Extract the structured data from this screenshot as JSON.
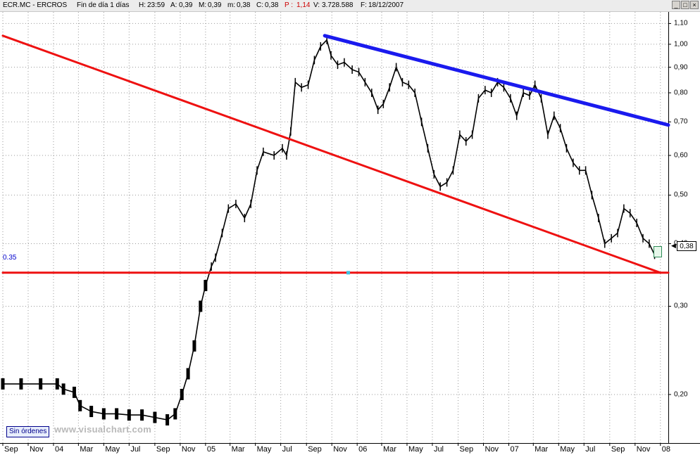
{
  "header": {
    "symbol": "ECR.MC - ERCROS",
    "period": "Fin de día 1 días",
    "h_label": "H:",
    "h_value": "23:59",
    "a_label": "A:",
    "a_value": "0,39",
    "m_label": "M:",
    "m_value": "0,39",
    "mn_label": "m:",
    "mn_value": "0,38",
    "c_label": "C:",
    "c_value": "0,38",
    "p_label": "P :",
    "p_value": "1,14",
    "v_label": "V:",
    "v_value": "3.728.588",
    "f_label": "F:",
    "f_value": "18/12/2007"
  },
  "window_buttons": [
    "_",
    "□",
    "×"
  ],
  "sin_ordenes": "Sin órdenes",
  "watermark": "www.visualchart.com",
  "price_badge": "0,38",
  "hline_label": "0.35",
  "colors": {
    "price": "#000000",
    "support": "#ee1111",
    "resistance": "#1a1aee",
    "marker": "#40c0e0"
  },
  "chart_data": {
    "type": "line",
    "title": "",
    "xlabel": "",
    "ylabel": "",
    "y_scale": "log",
    "ylim": [
      0.16,
      1.16
    ],
    "x_range": [
      "2003-09-01",
      "2008-01-20"
    ],
    "y_ticks": [
      "1,10",
      "1,00",
      "0,90",
      "0,80",
      "0,70",
      "0,60",
      "0,50",
      "0,40",
      "0,30",
      "0,20"
    ],
    "y_tick_values": [
      1.1,
      1.0,
      0.9,
      0.8,
      0.7,
      0.6,
      0.5,
      0.4,
      0.3,
      0.2
    ],
    "x_ticks": [
      {
        "label": "Sep",
        "date": "2003-09-01"
      },
      {
        "label": "Nov",
        "date": "2003-11-01"
      },
      {
        "label": "04",
        "date": "2004-01-01"
      },
      {
        "label": "Mar",
        "date": "2004-03-01"
      },
      {
        "label": "May",
        "date": "2004-05-01"
      },
      {
        "label": "Jul",
        "date": "2004-07-01"
      },
      {
        "label": "Sep",
        "date": "2004-09-01"
      },
      {
        "label": "Nov",
        "date": "2004-11-01"
      },
      {
        "label": "05",
        "date": "2005-01-01"
      },
      {
        "label": "Mar",
        "date": "2005-03-01"
      },
      {
        "label": "May",
        "date": "2005-05-01"
      },
      {
        "label": "Jul",
        "date": "2005-07-01"
      },
      {
        "label": "Sep",
        "date": "2005-09-01"
      },
      {
        "label": "Nov",
        "date": "2005-11-01"
      },
      {
        "label": "06",
        "date": "2006-01-01"
      },
      {
        "label": "Mar",
        "date": "2006-03-01"
      },
      {
        "label": "May",
        "date": "2006-05-01"
      },
      {
        "label": "Jul",
        "date": "2006-07-01"
      },
      {
        "label": "Sep",
        "date": "2006-09-01"
      },
      {
        "label": "Nov",
        "date": "2006-11-01"
      },
      {
        "label": "07",
        "date": "2007-01-01"
      },
      {
        "label": "Mar",
        "date": "2007-03-01"
      },
      {
        "label": "May",
        "date": "2007-05-01"
      },
      {
        "label": "Jul",
        "date": "2007-07-01"
      },
      {
        "label": "Sep",
        "date": "2007-09-01"
      },
      {
        "label": "Nov",
        "date": "2007-11-01"
      },
      {
        "label": "08",
        "date": "2008-01-01"
      }
    ],
    "series": [
      {
        "values": [
          [
            "2003-09-01",
            0.21
          ],
          [
            "2003-10-15",
            0.21
          ],
          [
            "2003-12-01",
            0.21
          ],
          [
            "2004-01-10",
            0.21
          ],
          [
            "2004-01-25",
            0.205
          ],
          [
            "2004-02-20",
            0.202
          ],
          [
            "2004-03-05",
            0.19
          ],
          [
            "2004-04-01",
            0.185
          ],
          [
            "2004-05-01",
            0.183
          ],
          [
            "2004-06-01",
            0.183
          ],
          [
            "2004-07-01",
            0.182
          ],
          [
            "2004-08-01",
            0.182
          ],
          [
            "2004-09-01",
            0.18
          ],
          [
            "2004-10-01",
            0.178
          ],
          [
            "2004-10-20",
            0.183
          ],
          [
            "2004-11-05",
            0.2
          ],
          [
            "2004-11-20",
            0.22
          ],
          [
            "2004-12-05",
            0.25
          ],
          [
            "2004-12-20",
            0.3
          ],
          [
            "2005-01-01",
            0.33
          ],
          [
            "2005-01-15",
            0.36
          ],
          [
            "2005-01-25",
            0.375
          ],
          [
            "2005-02-10",
            0.42
          ],
          [
            "2005-02-25",
            0.47
          ],
          [
            "2005-03-15",
            0.48
          ],
          [
            "2005-04-05",
            0.45
          ],
          [
            "2005-04-20",
            0.48
          ],
          [
            "2005-05-05",
            0.56
          ],
          [
            "2005-05-20",
            0.61
          ],
          [
            "2005-06-15",
            0.6
          ],
          [
            "2005-07-05",
            0.62
          ],
          [
            "2005-07-15",
            0.6
          ],
          [
            "2005-07-25",
            0.67
          ],
          [
            "2005-08-05",
            0.84
          ],
          [
            "2005-08-20",
            0.82
          ],
          [
            "2005-09-05",
            0.83
          ],
          [
            "2005-09-20",
            0.93
          ],
          [
            "2005-10-05",
            0.99
          ],
          [
            "2005-10-20",
            1.02
          ],
          [
            "2005-10-30",
            0.95
          ],
          [
            "2005-11-15",
            0.91
          ],
          [
            "2005-12-01",
            0.92
          ],
          [
            "2005-12-20",
            0.89
          ],
          [
            "2006-01-05",
            0.88
          ],
          [
            "2006-01-20",
            0.84
          ],
          [
            "2006-02-05",
            0.8
          ],
          [
            "2006-02-20",
            0.74
          ],
          [
            "2006-03-05",
            0.76
          ],
          [
            "2006-03-20",
            0.82
          ],
          [
            "2006-04-05",
            0.9
          ],
          [
            "2006-04-20",
            0.84
          ],
          [
            "2006-05-05",
            0.83
          ],
          [
            "2006-05-20",
            0.8
          ],
          [
            "2006-06-05",
            0.7
          ],
          [
            "2006-06-20",
            0.62
          ],
          [
            "2006-07-05",
            0.55
          ],
          [
            "2006-07-20",
            0.52
          ],
          [
            "2006-08-05",
            0.53
          ],
          [
            "2006-08-20",
            0.56
          ],
          [
            "2006-09-05",
            0.66
          ],
          [
            "2006-09-20",
            0.64
          ],
          [
            "2006-10-05",
            0.66
          ],
          [
            "2006-10-20",
            0.78
          ],
          [
            "2006-11-05",
            0.81
          ],
          [
            "2006-11-20",
            0.8
          ],
          [
            "2006-12-05",
            0.84
          ],
          [
            "2006-12-20",
            0.82
          ],
          [
            "2007-01-05",
            0.78
          ],
          [
            "2007-01-20",
            0.72
          ],
          [
            "2007-02-05",
            0.8
          ],
          [
            "2007-02-20",
            0.79
          ],
          [
            "2007-03-05",
            0.83
          ],
          [
            "2007-03-20",
            0.78
          ],
          [
            "2007-04-05",
            0.66
          ],
          [
            "2007-04-20",
            0.72
          ],
          [
            "2007-05-05",
            0.68
          ],
          [
            "2007-05-20",
            0.62
          ],
          [
            "2007-06-05",
            0.58
          ],
          [
            "2007-06-20",
            0.56
          ],
          [
            "2007-07-05",
            0.56
          ],
          [
            "2007-07-20",
            0.5
          ],
          [
            "2007-08-05",
            0.45
          ],
          [
            "2007-08-20",
            0.4
          ],
          [
            "2007-09-05",
            0.41
          ],
          [
            "2007-09-20",
            0.42
          ],
          [
            "2007-10-05",
            0.47
          ],
          [
            "2007-10-20",
            0.46
          ],
          [
            "2007-11-05",
            0.44
          ],
          [
            "2007-11-20",
            0.41
          ],
          [
            "2007-12-05",
            0.4
          ],
          [
            "2007-12-18",
            0.38
          ]
        ]
      }
    ],
    "trendlines": [
      {
        "from": [
          "2003-09-01",
          1.04
        ],
        "to": [
          "2008-01-01",
          0.35
        ]
      },
      {
        "from": [
          "2005-10-15",
          1.04
        ],
        "to": [
          "2008-01-20",
          0.69
        ]
      },
      {
        "from": [
          "2003-09-01",
          0.35
        ],
        "to": [
          "2008-01-20",
          0.35
        ]
      }
    ],
    "grid": true
  }
}
